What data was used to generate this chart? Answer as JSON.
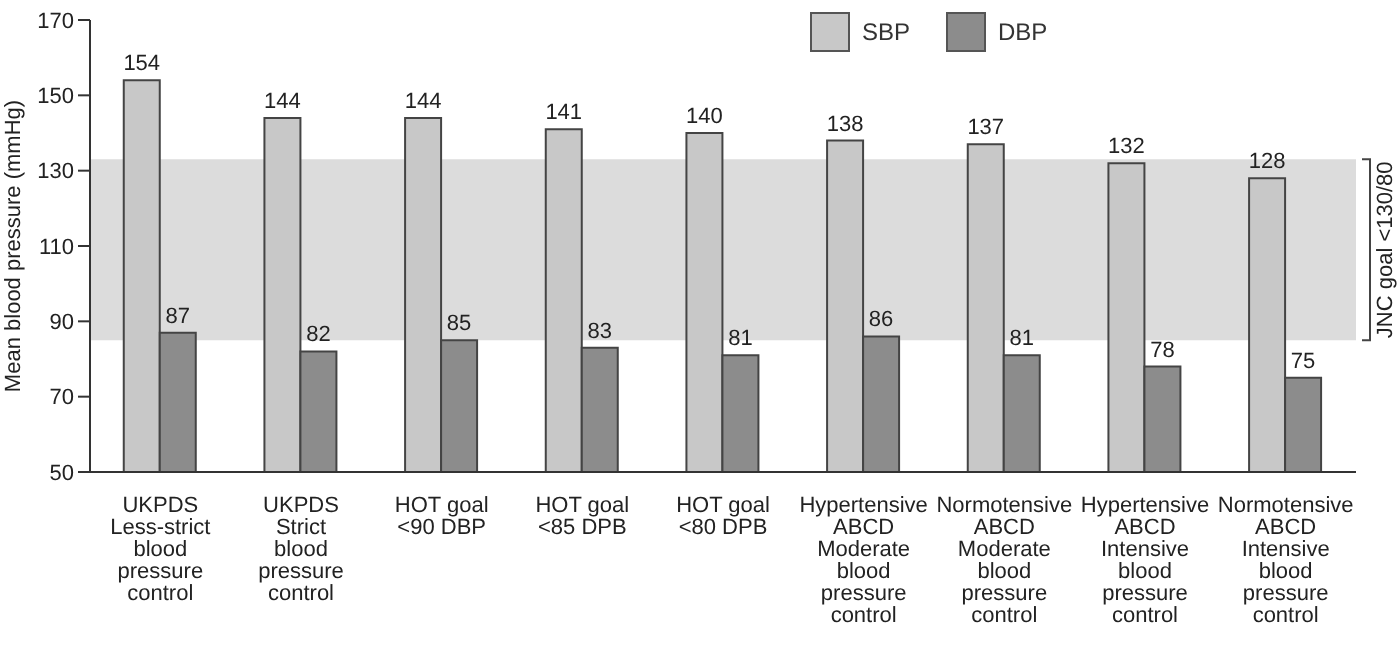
{
  "chart_data": {
    "type": "bar",
    "ylabel": "Mean blood pressure (mmHg)",
    "categories": [
      "UKPDS\nLess-strict\nblood\npressure\ncontrol",
      "UKPDS\nStrict\nblood\npressure\ncontrol",
      "HOT goal\n<90 DBP",
      "HOT goal\n<85 DPB",
      "HOT goal\n<80 DPB",
      "Hypertensive\nABCD\nModerate\nblood\npressure\ncontrol",
      "Normotensive\nABCD\nModerate\nblood\npressure\ncontrol",
      "Hypertensive\nABCD\nIntensive\nblood\npressure\ncontrol",
      "Normotensive\nABCD\nIntensive\nblood\npressure\ncontrol"
    ],
    "series": [
      {
        "name": "SBP",
        "color": "#c8c8c8",
        "values": [
          154,
          144,
          144,
          141,
          140,
          138,
          137,
          132,
          128
        ]
      },
      {
        "name": "DBP",
        "color": "#8c8c8c",
        "values": [
          87,
          82,
          85,
          83,
          81,
          86,
          81,
          78,
          75
        ]
      }
    ],
    "ylim": [
      50,
      170
    ],
    "yticks": [
      50,
      70,
      90,
      110,
      130,
      150,
      170
    ],
    "bands": [
      {
        "axis": "y",
        "from": 85,
        "to": 133,
        "label": "JNC goal <130/80",
        "color": "#dcdcdc"
      }
    ],
    "data_labels": true,
    "legend": "top right"
  }
}
